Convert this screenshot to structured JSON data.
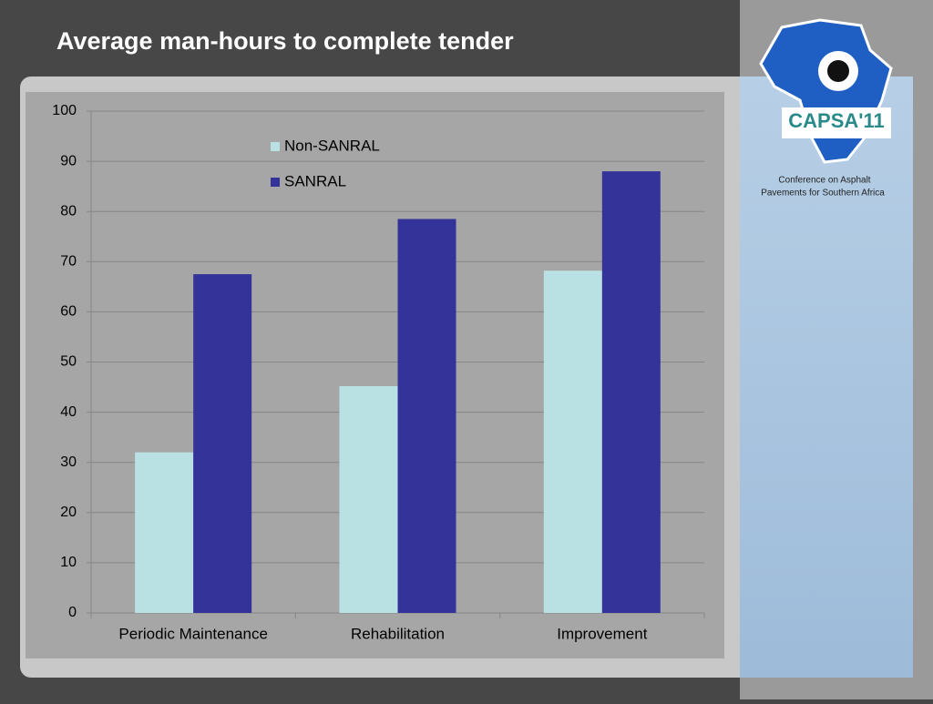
{
  "chart_data": {
    "type": "bar",
    "title": "Average man-hours to complete tender",
    "categories": [
      "Periodic Maintenance",
      "Rehabilitation",
      "Improvement"
    ],
    "series": [
      {
        "name": "Non-SANRAL",
        "color": "#b9e1e4",
        "values": [
          32,
          45.2,
          68.2
        ]
      },
      {
        "name": "SANRAL",
        "color": "#333399",
        "values": [
          67.5,
          78.5,
          88
        ]
      }
    ],
    "ylim": [
      0,
      100
    ],
    "yticks": [
      0,
      10,
      20,
      30,
      40,
      50,
      60,
      70,
      80,
      90,
      100
    ],
    "grid": true,
    "legend": "top"
  },
  "branding": {
    "logo_text": "CAPSA'11",
    "caption_lines": [
      "Conference on Asphalt",
      "Pavements for Southern Africa"
    ]
  }
}
